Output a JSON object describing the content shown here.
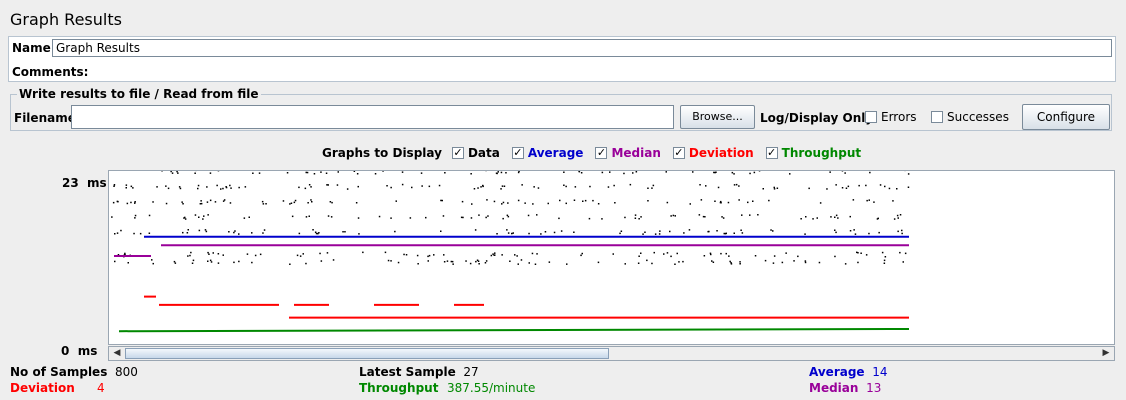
{
  "title": "Graph Results",
  "name_label": "Name:",
  "name_value": "Graph Results",
  "comments_label": "Comments:",
  "write_legend": "Write results to file / Read from file",
  "filename_label": "Filename",
  "filename_value": "",
  "browse_label": "Browse...",
  "logdisplay_label": "Log/Display Only:",
  "errors_label": "Errors",
  "successes_label": "Successes",
  "configure_label": "Configure",
  "graphs_to_display_label": "Graphs to Display",
  "toggles": {
    "data": {
      "label": "Data",
      "checked": true,
      "color": "#000000"
    },
    "average": {
      "label": "Average",
      "checked": true,
      "color": "#0000cc"
    },
    "median": {
      "label": "Median",
      "checked": true,
      "color": "#990099"
    },
    "deviation": {
      "label": "Deviation",
      "checked": true,
      "color": "#ff0000"
    },
    "throughput": {
      "label": "Throughput",
      "checked": true,
      "color": "#008800"
    }
  },
  "y_top_label": "23  ms",
  "y_bottom_label": "0  ms",
  "stats": {
    "no_of_samples_label": "No of Samples",
    "no_of_samples": "800",
    "latest_sample_label": "Latest Sample",
    "latest_sample": "27",
    "average_label": "Average",
    "average": "14",
    "deviation_label": "Deviation",
    "deviation": "4",
    "throughput_label": "Throughput",
    "throughput": "387.55/minute",
    "median_label": "Median",
    "median": "13"
  },
  "chart_data": {
    "type": "line",
    "ylim": [
      0,
      23
    ],
    "y_unit": "ms",
    "sample_count": 800,
    "series": [
      {
        "name": "Average",
        "color": "#0000cc",
        "steady_value": 14
      },
      {
        "name": "Median",
        "color": "#990099",
        "steady_value": 13
      },
      {
        "name": "Deviation",
        "color": "#ff0000",
        "steady_value": 4
      },
      {
        "name": "Throughput",
        "color": "#008800"
      }
    ],
    "data_points_note_levels": [
      23,
      21,
      19,
      17,
      15,
      12,
      11
    ]
  }
}
